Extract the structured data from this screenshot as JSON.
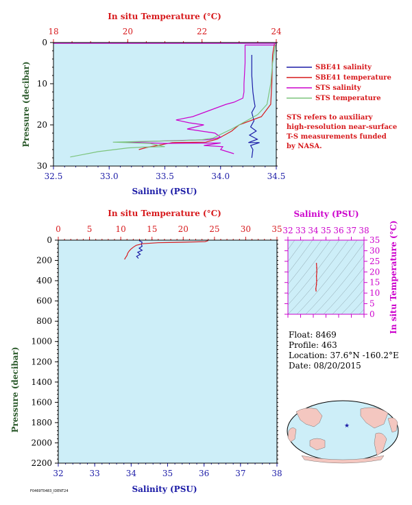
{
  "colors": {
    "panel_bg": "#cdeef8",
    "red": "#d7191c",
    "blue": "#1a1aa6",
    "magenta": "#cc00cc",
    "green": "#7cc47c",
    "olive": "#a8a060",
    "axis_black": "#000000",
    "pressure_title": "#2b5a2b"
  },
  "legend": {
    "items": [
      {
        "label": "SBE41 salinity",
        "color": "#1a1aa6"
      },
      {
        "label": "SBE41 temperature",
        "color": "#d7191c"
      },
      {
        "label": "STS salinity",
        "color": "#cc00cc"
      },
      {
        "label": "STS temperature",
        "color": "#7cc47c"
      }
    ],
    "note": [
      "STS refers to auxiliary",
      "high-resolution near-surface",
      "T-S measurements funded",
      "by NASA."
    ]
  },
  "info": {
    "float": "Float: 8469",
    "profile": "Profile: 463",
    "location": "Location: 37.6°N -160.2°E",
    "date": "Date: 08/20/2015"
  },
  "footer_id": "F0469T0483_IDENT24",
  "chart_data": [
    {
      "type": "line",
      "name": "near-surface profile",
      "title_top": "In situ Temperature (°C)",
      "xlabel": "Salinity (PSU)",
      "ylabel": "Pressure (decibar)",
      "xlim_salinity": [
        32.5,
        34.5
      ],
      "xlim_temperature": [
        18,
        24
      ],
      "ylim_pressure": [
        0,
        30
      ],
      "temperature_ticks": [
        "18",
        "20",
        "22",
        "24"
      ],
      "salinity_ticks": [
        "32.5",
        "33.0",
        "33.5",
        "34.0",
        "34.5"
      ],
      "pressure_ticks": [
        "0",
        "10",
        "20",
        "30"
      ],
      "series": [
        {
          "name": "SBE41 salinity",
          "axis": "salinity",
          "points": [
            [
              34.28,
              3
            ],
            [
              34.28,
              8
            ],
            [
              34.29,
              12
            ],
            [
              34.3,
              14
            ],
            [
              34.31,
              15.5
            ],
            [
              34.28,
              17
            ],
            [
              34.3,
              19
            ],
            [
              34.27,
              20.5
            ],
            [
              34.32,
              21.5
            ],
            [
              34.26,
              22.5
            ],
            [
              34.33,
              23.5
            ],
            [
              34.25,
              24.3
            ],
            [
              34.35,
              24.3
            ],
            [
              34.27,
              25
            ],
            [
              34.29,
              26
            ],
            [
              34.28,
              28
            ]
          ]
        },
        {
          "name": "SBE41 temperature",
          "axis": "temperature",
          "points": [
            [
              23.95,
              0.3
            ],
            [
              23.9,
              3
            ],
            [
              23.88,
              10
            ],
            [
              23.85,
              15
            ],
            [
              23.6,
              18
            ],
            [
              23.0,
              20
            ],
            [
              22.8,
              21.5
            ],
            [
              22.6,
              22.5
            ],
            [
              22.4,
              23.5
            ],
            [
              22.1,
              24.2
            ],
            [
              21.2,
              24.3
            ],
            [
              20.8,
              25
            ],
            [
              20.5,
              25.5
            ],
            [
              20.3,
              26
            ]
          ]
        },
        {
          "name": "STS salinity",
          "axis": "salinity",
          "points": [
            [
              32.5,
              0.2
            ],
            [
              34.5,
              0.2
            ],
            [
              34.5,
              0.6
            ],
            [
              34.22,
              0.6
            ],
            [
              34.22,
              5
            ],
            [
              34.21,
              10
            ],
            [
              34.21,
              12
            ],
            [
              34.2,
              13.5
            ],
            [
              34.12,
              14.5
            ],
            [
              34.05,
              15
            ],
            [
              33.95,
              16
            ],
            [
              33.85,
              17
            ],
            [
              33.75,
              18
            ],
            [
              33.6,
              18.8
            ],
            [
              33.72,
              19.5
            ],
            [
              33.85,
              20
            ],
            [
              33.7,
              21
            ],
            [
              33.95,
              22
            ],
            [
              34.0,
              23
            ],
            [
              33.9,
              23.6
            ],
            [
              33.6,
              23.8
            ],
            [
              33.15,
              24.2
            ],
            [
              33.5,
              24.5
            ],
            [
              34.0,
              24.4
            ],
            [
              33.85,
              25
            ],
            [
              34.02,
              25.3
            ],
            [
              34.0,
              26
            ],
            [
              34.12,
              27
            ]
          ]
        },
        {
          "name": "STS temperature",
          "axis": "temperature",
          "points": [
            [
              23.98,
              0.5
            ],
            [
              23.9,
              5
            ],
            [
              23.85,
              10
            ],
            [
              23.75,
              15
            ],
            [
              23.5,
              17.5
            ],
            [
              23.2,
              19
            ],
            [
              22.8,
              21
            ],
            [
              22.5,
              22.3
            ],
            [
              22.3,
              23.2
            ],
            [
              22.0,
              23.6
            ],
            [
              21.5,
              23.8
            ],
            [
              20.5,
              24.0
            ],
            [
              19.6,
              24.2
            ],
            [
              20.6,
              24.5
            ],
            [
              21.0,
              25.3
            ],
            [
              20.4,
              25.4
            ],
            [
              20.0,
              25.6
            ],
            [
              19.2,
              26.5
            ],
            [
              18.8,
              27.2
            ],
            [
              18.45,
              27.8
            ]
          ]
        }
      ]
    },
    {
      "type": "line",
      "name": "full profile",
      "title_top": "In situ Temperature (°C)",
      "xlabel": "Salinity (PSU)",
      "ylabel": "Pressure (decibar)",
      "xlim_salinity": [
        32,
        38
      ],
      "xlim_temperature": [
        0,
        35
      ],
      "ylim_pressure": [
        0,
        2200
      ],
      "temperature_ticks": [
        "0",
        "5",
        "10",
        "15",
        "20",
        "25",
        "30",
        "35"
      ],
      "salinity_ticks": [
        "32",
        "33",
        "34",
        "35",
        "36",
        "37",
        "38"
      ],
      "pressure_ticks": [
        "0",
        "200",
        "400",
        "600",
        "800",
        "1000",
        "1200",
        "1400",
        "1600",
        "1800",
        "2000",
        "2200"
      ],
      "series": [
        {
          "name": "SBE41 salinity",
          "axis": "salinity",
          "points": [
            [
              34.22,
              5
            ],
            [
              34.3,
              20
            ],
            [
              34.28,
              40
            ],
            [
              34.3,
              60
            ],
            [
              34.22,
              80
            ],
            [
              34.3,
              100
            ],
            [
              34.18,
              120
            ],
            [
              34.25,
              140
            ],
            [
              34.15,
              160
            ],
            [
              34.2,
              180
            ]
          ]
        },
        {
          "name": "SBE41 temperature",
          "axis": "temperature",
          "points": [
            [
              24.0,
              5
            ],
            [
              23.5,
              15
            ],
            [
              20.0,
              20
            ],
            [
              16.0,
              25
            ],
            [
              13.5,
              35
            ],
            [
              12.5,
              50
            ],
            [
              12.0,
              70
            ],
            [
              11.6,
              90
            ],
            [
              11.3,
              110
            ],
            [
              11.1,
              130
            ],
            [
              11.0,
              150
            ],
            [
              10.8,
              170
            ],
            [
              10.6,
              190
            ]
          ]
        }
      ]
    },
    {
      "type": "scatter",
      "name": "T-S diagram",
      "xlabel": "Salinity (PSU)",
      "ylabel": "In situ Temperature (°C)",
      "xlim": [
        32,
        38
      ],
      "ylim": [
        0,
        35
      ],
      "x_ticks": [
        "32",
        "33",
        "34",
        "35",
        "36",
        "37",
        "38"
      ],
      "y_ticks": [
        "0",
        "5",
        "10",
        "15",
        "20",
        "25",
        "30",
        "35"
      ],
      "points": [
        [
          34.25,
          24
        ],
        [
          34.27,
          22
        ],
        [
          34.28,
          20
        ],
        [
          34.25,
          18
        ],
        [
          34.27,
          16
        ],
        [
          34.25,
          14
        ],
        [
          34.2,
          12
        ],
        [
          34.22,
          11
        ]
      ]
    }
  ]
}
